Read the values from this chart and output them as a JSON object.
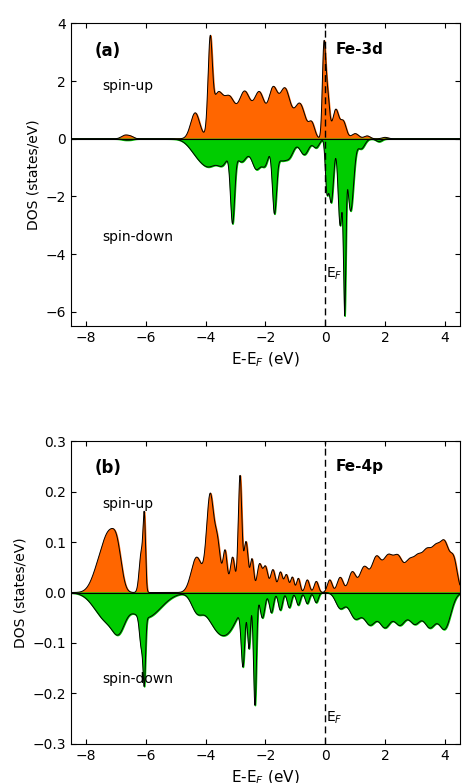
{
  "fig_width": 4.74,
  "fig_height": 7.83,
  "dpi": 100,
  "panel_a": {
    "label": "(a)",
    "orbital": "Fe-3d",
    "xlabel": "E-E$_F$ (eV)",
    "ylabel": "DOS (states/eV)",
    "xlim": [
      -8.5,
      4.5
    ],
    "ylim": [
      -6.5,
      4.0
    ],
    "yticks": [
      -6,
      -4,
      -2,
      0,
      2,
      4
    ],
    "xticks": [
      -8,
      -6,
      -4,
      -2,
      0,
      2,
      4
    ],
    "ef_label": "E$_F$",
    "spin_up_label": "spin-up",
    "spin_down_label": "spin-down",
    "fill_color_up": "#FF6600",
    "fill_color_down": "#00CC00",
    "line_color": "#000000"
  },
  "panel_b": {
    "label": "(b)",
    "orbital": "Fe-4p",
    "xlabel": "E-E$_F$ (eV)",
    "ylabel": "DOS (states/eV)",
    "xlim": [
      -8.5,
      4.5
    ],
    "ylim": [
      -0.3,
      0.3
    ],
    "yticks": [
      -0.3,
      -0.2,
      -0.1,
      0.0,
      0.1,
      0.2,
      0.3
    ],
    "xticks": [
      -8,
      -6,
      -4,
      -2,
      0,
      2,
      4
    ],
    "ef_label": "E$_F$",
    "spin_up_label": "spin-up",
    "spin_down_label": "spin-down",
    "fill_color_up": "#FF6600",
    "fill_color_down": "#00CC00",
    "line_color": "#000000"
  }
}
